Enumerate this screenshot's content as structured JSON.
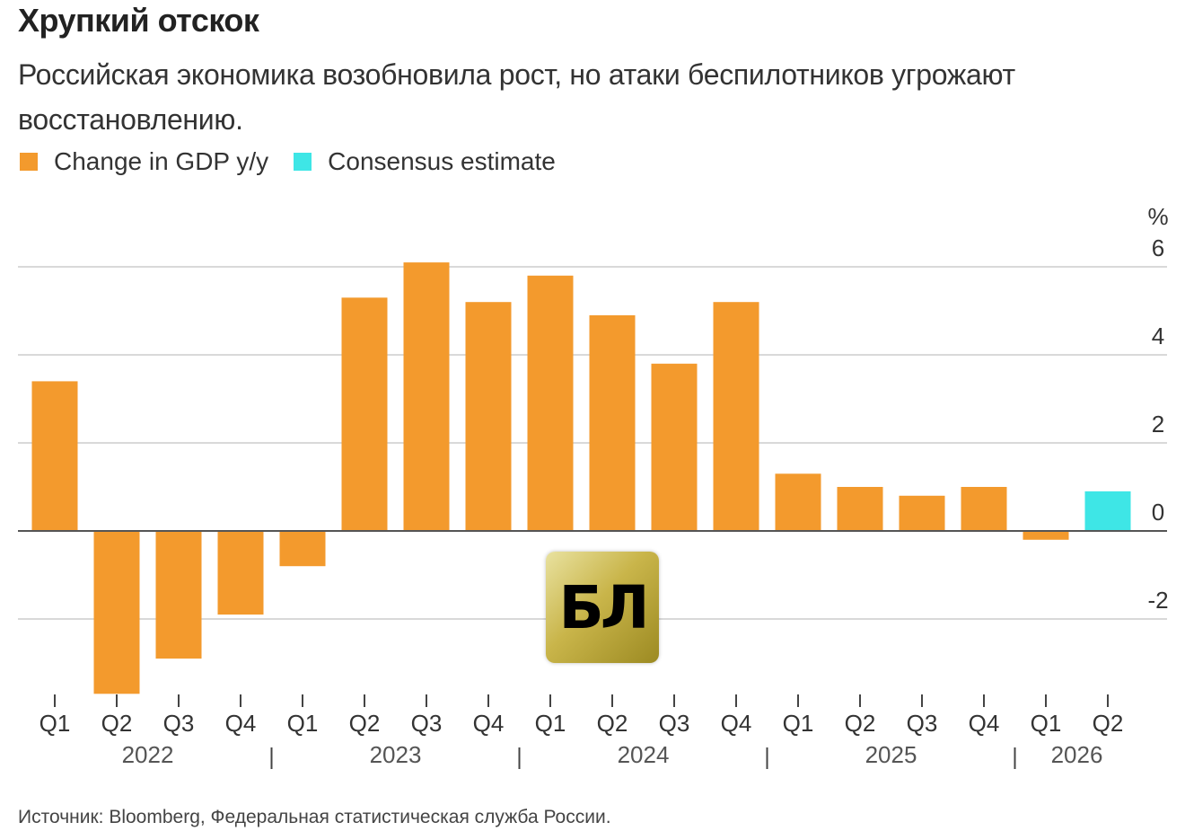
{
  "header": {
    "title": "Хрупкий отскок",
    "subtitle": "Российская экономика возобновила рост, но атаки беспилотников угрожают восстановлению."
  },
  "legend": [
    {
      "label": "Change in GDP y/y",
      "color": "#f39a2d"
    },
    {
      "label": "Consensus estimate",
      "color": "#3ee6e6"
    }
  ],
  "footer": {
    "source": "Источник: Bloomberg, Федеральная статистическая служба России."
  },
  "logo": {
    "text": "БЛ"
  },
  "chart_data": {
    "type": "bar",
    "unit_label": "%",
    "ylim": [
      -3.8,
      6
    ],
    "yticks": [
      6,
      4,
      2,
      0,
      -2
    ],
    "grid": true,
    "legend_position": "top-left",
    "categories": [
      "Q1",
      "Q2",
      "Q3",
      "Q4",
      "Q1",
      "Q2",
      "Q3",
      "Q4",
      "Q1",
      "Q2",
      "Q3",
      "Q4",
      "Q1",
      "Q2",
      "Q3",
      "Q4",
      "Q1",
      "Q2"
    ],
    "years": [
      {
        "label": "2022",
        "start": 0,
        "end": 3
      },
      {
        "label": "2023",
        "start": 4,
        "end": 7
      },
      {
        "label": "2024",
        "start": 8,
        "end": 11
      },
      {
        "label": "2025",
        "start": 12,
        "end": 15
      },
      {
        "label": "2026",
        "start": 16,
        "end": 17
      }
    ],
    "series": [
      {
        "name": "Change in GDP y/y",
        "color": "#f39a2d",
        "values": [
          3.4,
          -3.7,
          -2.9,
          -1.9,
          -0.8,
          5.3,
          6.1,
          5.2,
          5.8,
          4.9,
          3.8,
          5.2,
          1.3,
          1.0,
          0.8,
          1.0,
          -0.2,
          null
        ]
      },
      {
        "name": "Consensus estimate",
        "color": "#3ee6e6",
        "values": [
          null,
          null,
          null,
          null,
          null,
          null,
          null,
          null,
          null,
          null,
          null,
          null,
          null,
          null,
          null,
          null,
          null,
          0.9
        ]
      }
    ]
  }
}
